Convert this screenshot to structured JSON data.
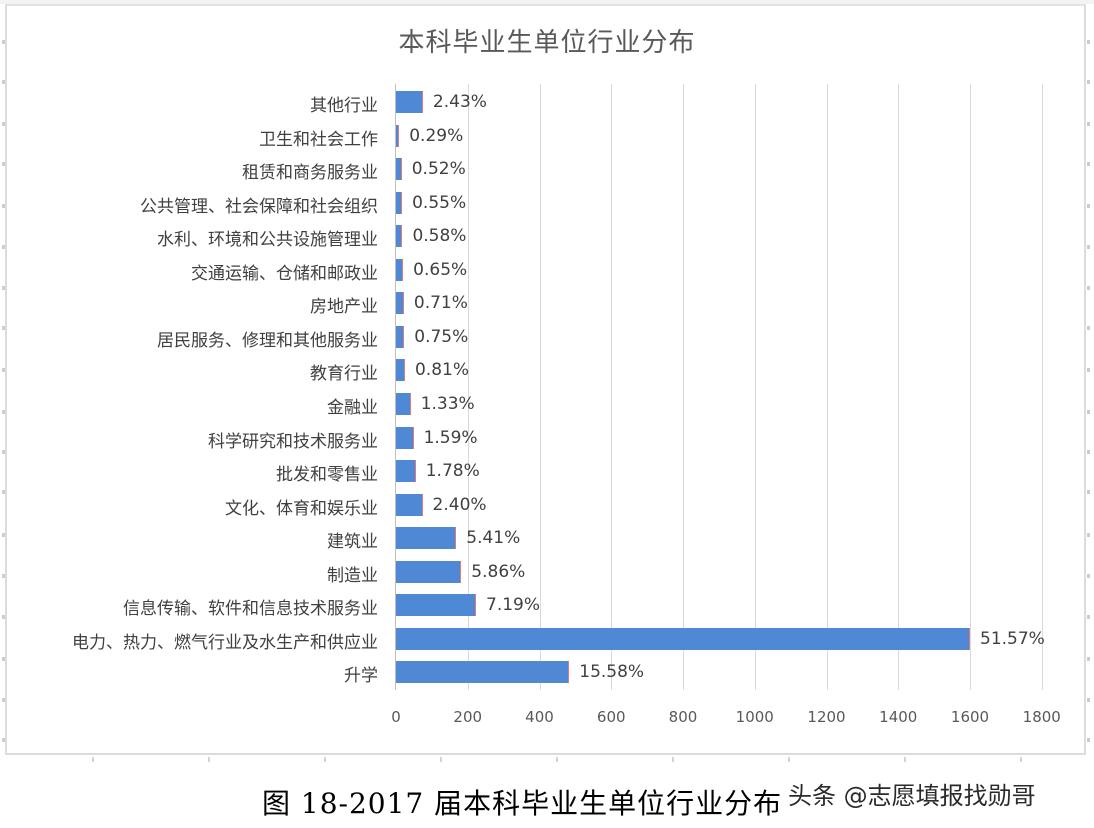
{
  "chart_data": {
    "type": "bar",
    "orientation": "horizontal",
    "title": "本科毕业生单位行业分布",
    "xlabel": "",
    "ylabel": "",
    "xlim": [
      0,
      1800
    ],
    "xticks": [
      "0",
      "200",
      "400",
      "600",
      "800",
      "1000",
      "1200",
      "1400",
      "1600",
      "1800"
    ],
    "grid": true,
    "legend": null,
    "categories": [
      "其他行业",
      "卫生和社会工作",
      "租赁和商务服务业",
      "公共管理、社会保障和社会组织",
      "水利、环境和公共设施管理业",
      "交通运输、仓储和邮政业",
      "房地产业",
      "居民服务、修理和其他服务业",
      "教育行业",
      "金融业",
      "科学研究和技术服务业",
      "批发和零售业",
      "文化、体育和娱乐业",
      "建筑业",
      "制造业",
      "信息传输、软件和信息技术服务业",
      "电力、热力、燃气行业及水生产和供应业",
      "升学"
    ],
    "values": [
      75,
      9,
      16,
      17,
      18,
      20,
      22,
      23,
      25,
      41,
      49,
      55,
      74,
      168,
      182,
      223,
      1600,
      483
    ],
    "data_labels": [
      "2.43%",
      "0.29%",
      "0.52%",
      "0.55%",
      "0.58%",
      "0.65%",
      "0.71%",
      "0.75%",
      "0.81%",
      "1.33%",
      "1.59%",
      "1.78%",
      "2.40%",
      "5.41%",
      "5.86%",
      "7.19%",
      "51.57%",
      "15.58%"
    ],
    "bar_color": "#4f89d6"
  },
  "caption": "图 18-2017 届本科毕业生单位行业分布",
  "watermark": "头条 @志愿填报找勋哥"
}
